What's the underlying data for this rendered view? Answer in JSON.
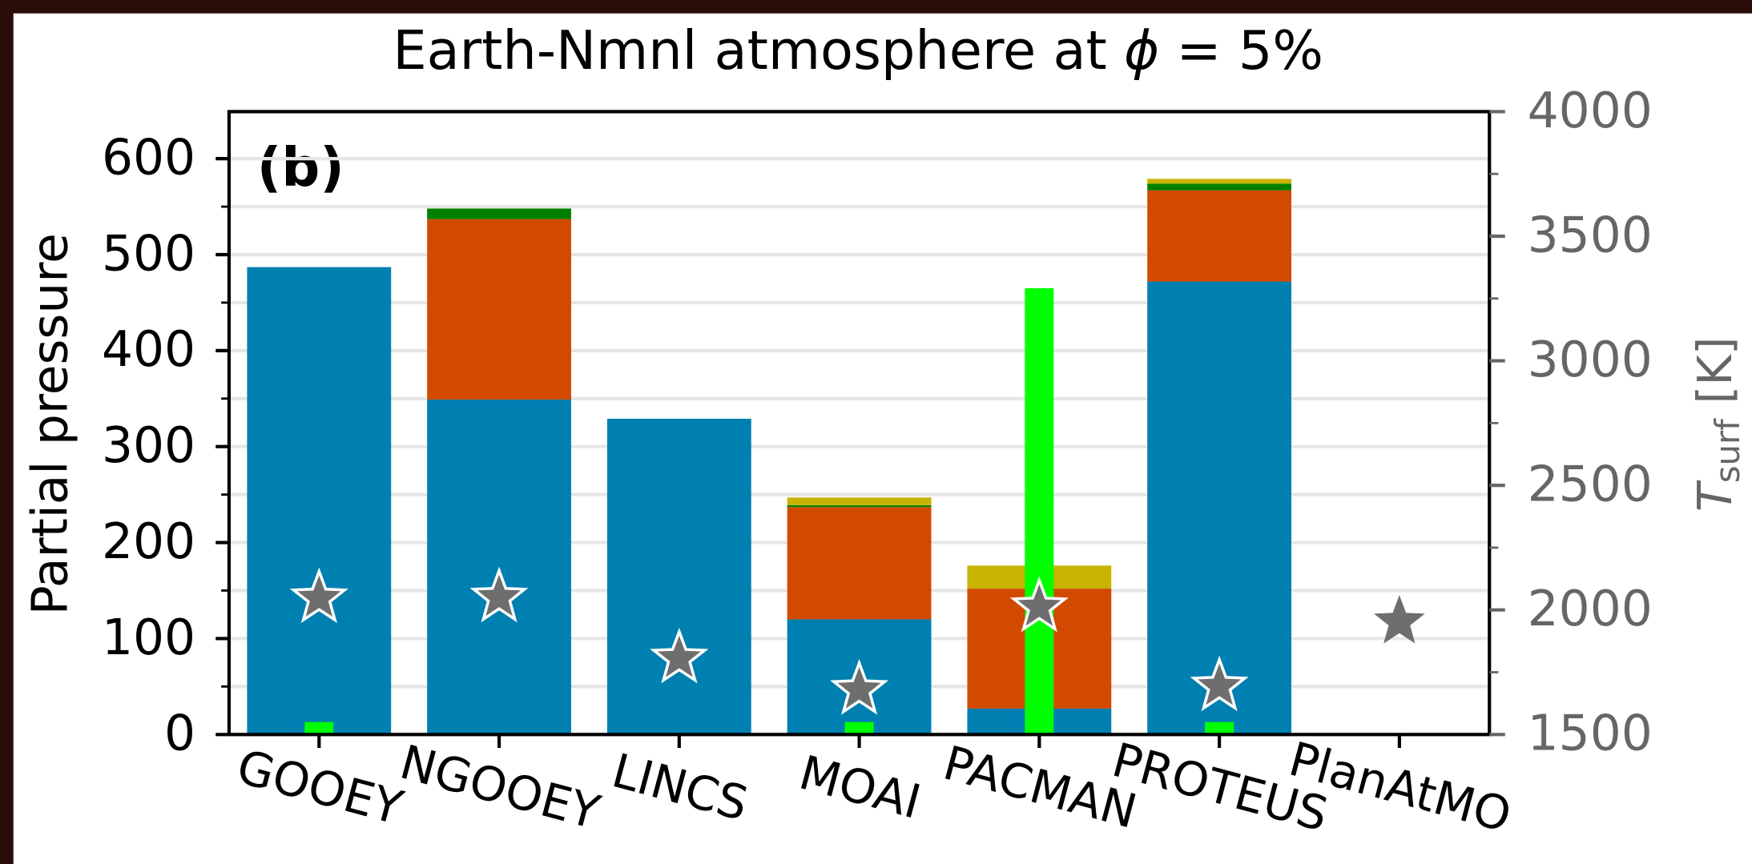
{
  "chart_data": {
    "type": "bar",
    "stacked": true,
    "title": "Earth-Nmnl atmosphere at ",
    "title_math": {
      "symbol": "ϕ",
      "rest": " = 5%"
    },
    "annotation": "(b)",
    "ylabel": "Partial pressure",
    "y2label": {
      "symbol": "T",
      "subscript": "surf",
      "unit": " [K]"
    },
    "categories": [
      "GOOEY",
      "NGOOEY",
      "LINCS",
      "MOAI",
      "PACMAN",
      "PROTEUS",
      "PlanAtMO"
    ],
    "series": [
      {
        "color": "#0080b0",
        "values": [
          487,
          349,
          329,
          120,
          27,
          472,
          0
        ]
      },
      {
        "color": "#d24a00",
        "values": [
          0,
          188,
          0,
          117,
          125,
          95,
          0
        ]
      },
      {
        "color": "#008000",
        "values": [
          0,
          11,
          0,
          2,
          0,
          7,
          0
        ]
      },
      {
        "color": "#c8b400",
        "values": [
          0,
          0,
          0,
          8,
          24,
          5,
          0
        ]
      },
      {
        "color": "#00ff00",
        "narrow": true,
        "values": [
          13,
          0,
          0,
          13,
          465,
          13,
          0
        ]
      },
      {
        "color": "#6e6e6e",
        "axis": "y2",
        "marker": "star",
        "values": [
          2047,
          2050,
          1805,
          1679,
          2011,
          1693,
          1952
        ]
      }
    ],
    "ylim": [
      0,
      649
    ],
    "yticks": [
      0,
      100,
      200,
      300,
      400,
      500,
      600
    ],
    "yminor": [
      50,
      150,
      250,
      350,
      450,
      550,
      650
    ],
    "y2lim": [
      1500,
      4000
    ],
    "y2ticks": [
      1500,
      2000,
      2500,
      3000,
      3500,
      4000
    ],
    "y2minor": [
      1750,
      2250,
      2750,
      3250,
      3750
    ],
    "grid": true
  }
}
